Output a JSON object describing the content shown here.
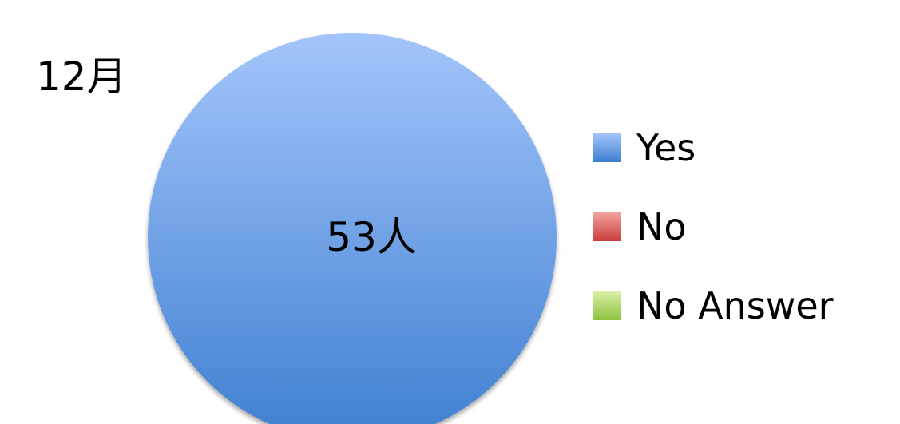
{
  "chart_data": {
    "type": "pie",
    "title": "12月",
    "categories": [
      "Yes",
      "No",
      "No Answer"
    ],
    "values": [
      53,
      0,
      0
    ],
    "data_labels": [
      "53人",
      "",
      ""
    ],
    "colors": {
      "Yes": "#6b9be0",
      "No": "#d9534f",
      "No Answer": "#a6cf5f"
    },
    "legend_position": "right"
  }
}
